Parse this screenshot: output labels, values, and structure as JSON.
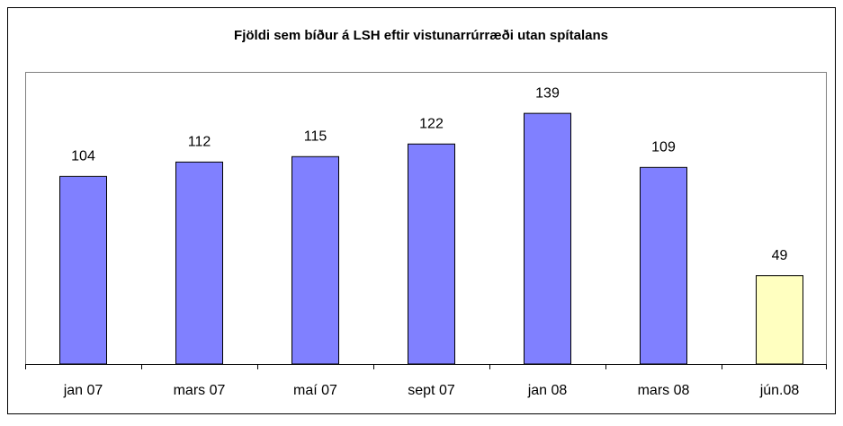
{
  "chart_data": {
    "type": "bar",
    "title": "Fjöldi sem bíður á LSH eftir vistunarrúrræði utan spítalans",
    "categories": [
      "jan 07",
      "mars 07",
      "maí 07",
      "sept 07",
      "jan 08",
      "mars 08",
      "jún.08"
    ],
    "values": [
      104,
      112,
      115,
      122,
      139,
      109,
      49
    ],
    "colors": [
      "#8080ff",
      "#8080ff",
      "#8080ff",
      "#8080ff",
      "#8080ff",
      "#8080ff",
      "#ffffc0"
    ],
    "ylim": [
      0,
      160
    ]
  }
}
